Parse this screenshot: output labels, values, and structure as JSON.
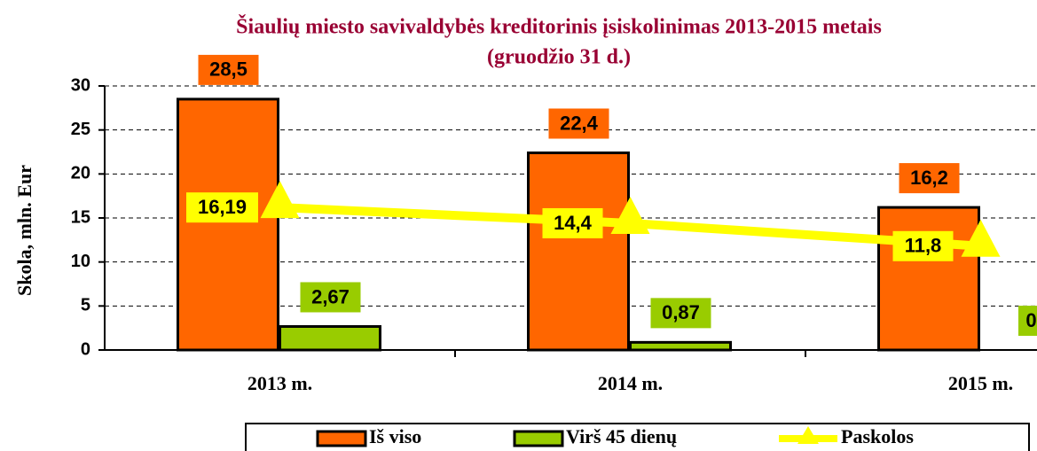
{
  "chart_data": {
    "type": "bar",
    "title": "Šiaulių miesto savivaldybės kreditorinis įsiskolinimas 2013-2015 metais",
    "subtitle": "(gruodžio 31 d.)",
    "y_label": "Skola, mln. Eur",
    "categories": [
      "2013 m.",
      "2014 m.",
      "2015 m."
    ],
    "series": [
      {
        "name": "Iš viso",
        "type": "bar",
        "color": "#ff6600",
        "values": [
          28.5,
          22.4,
          16.2
        ],
        "value_labels": [
          "28,5",
          "22,4",
          "16,2"
        ]
      },
      {
        "name": "Virš 45 dienų",
        "type": "bar",
        "color": "#99cc00",
        "values": [
          2.67,
          0.87,
          0
        ],
        "value_labels": [
          "2,67",
          "0,87",
          "0"
        ]
      },
      {
        "name": "Paskolos",
        "type": "line",
        "color": "#ffff00",
        "values": [
          16.19,
          14.4,
          11.8
        ],
        "value_labels": [
          "16,19",
          "14,4",
          "11,8"
        ]
      }
    ],
    "ylim": [
      0,
      30
    ],
    "yticks": [
      0,
      5,
      10,
      15,
      20,
      25,
      30
    ],
    "grid": true,
    "legend": "bottom"
  }
}
